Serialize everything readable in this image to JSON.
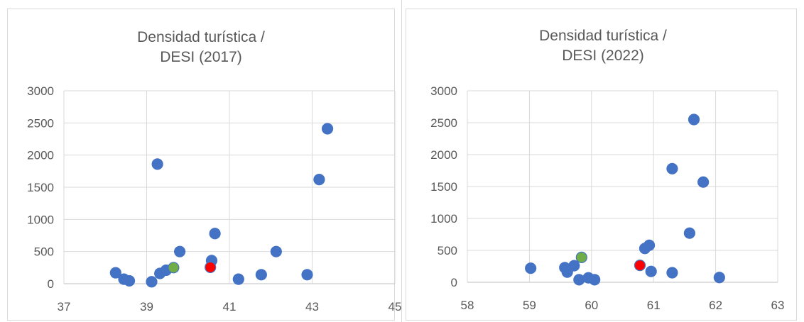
{
  "chart_data": [
    {
      "type": "scatter",
      "title_line1": "Densidad turística /",
      "title_line2": "DESI (2017)",
      "xlabel": "",
      "ylabel": "",
      "xlim": [
        37,
        45
      ],
      "ylim": [
        0,
        3000
      ],
      "x_ticks": [
        "37",
        "39",
        "41",
        "43",
        "45"
      ],
      "y_ticks": [
        "0",
        "500",
        "1000",
        "1500",
        "2000",
        "2500",
        "3000"
      ],
      "grid": true,
      "series": [
        {
          "color": "#4472c4",
          "points": [
            {
              "x": 38.25,
              "y": 170
            },
            {
              "x": 38.45,
              "y": 70
            },
            {
              "x": 38.58,
              "y": 45
            },
            {
              "x": 39.12,
              "y": 30
            },
            {
              "x": 39.26,
              "y": 1860
            },
            {
              "x": 39.32,
              "y": 160
            },
            {
              "x": 39.47,
              "y": 210
            },
            {
              "x": 39.8,
              "y": 500
            },
            {
              "x": 40.57,
              "y": 360
            },
            {
              "x": 40.65,
              "y": 780
            },
            {
              "x": 41.22,
              "y": 70
            },
            {
              "x": 41.77,
              "y": 140
            },
            {
              "x": 42.13,
              "y": 500
            },
            {
              "x": 42.88,
              "y": 140
            },
            {
              "x": 43.17,
              "y": 1620
            },
            {
              "x": 43.37,
              "y": 2410
            }
          ]
        },
        {
          "color": "#70ad47",
          "points": [
            {
              "x": 39.65,
              "y": 250
            }
          ]
        },
        {
          "color": "#ff0000",
          "points": [
            {
              "x": 40.54,
              "y": 255
            }
          ]
        }
      ]
    },
    {
      "type": "scatter",
      "title_line1": "Densidad turística /",
      "title_line2": "DESI (2022)",
      "xlabel": "",
      "ylabel": "",
      "xlim": [
        58,
        63
      ],
      "ylim": [
        0,
        3000
      ],
      "x_ticks": [
        "58",
        "59",
        "60",
        "61",
        "62",
        "63"
      ],
      "y_ticks": [
        "0",
        "500",
        "1000",
        "1500",
        "2000",
        "2500",
        "3000"
      ],
      "grid": true,
      "series": [
        {
          "color": "#4472c4",
          "points": [
            {
              "x": 59.02,
              "y": 220
            },
            {
              "x": 59.57,
              "y": 230
            },
            {
              "x": 59.61,
              "y": 160
            },
            {
              "x": 59.72,
              "y": 260
            },
            {
              "x": 59.8,
              "y": 40
            },
            {
              "x": 59.95,
              "y": 70
            },
            {
              "x": 60.05,
              "y": 40
            },
            {
              "x": 60.86,
              "y": 530
            },
            {
              "x": 60.93,
              "y": 580
            },
            {
              "x": 60.96,
              "y": 170
            },
            {
              "x": 61.3,
              "y": 1780
            },
            {
              "x": 61.3,
              "y": 150
            },
            {
              "x": 61.58,
              "y": 770
            },
            {
              "x": 61.65,
              "y": 2550
            },
            {
              "x": 61.8,
              "y": 1570
            },
            {
              "x": 62.06,
              "y": 75
            }
          ]
        },
        {
          "color": "#70ad47",
          "points": [
            {
              "x": 59.84,
              "y": 390
            }
          ]
        },
        {
          "color": "#ff0000",
          "points": [
            {
              "x": 60.78,
              "y": 265
            }
          ]
        }
      ]
    }
  ]
}
